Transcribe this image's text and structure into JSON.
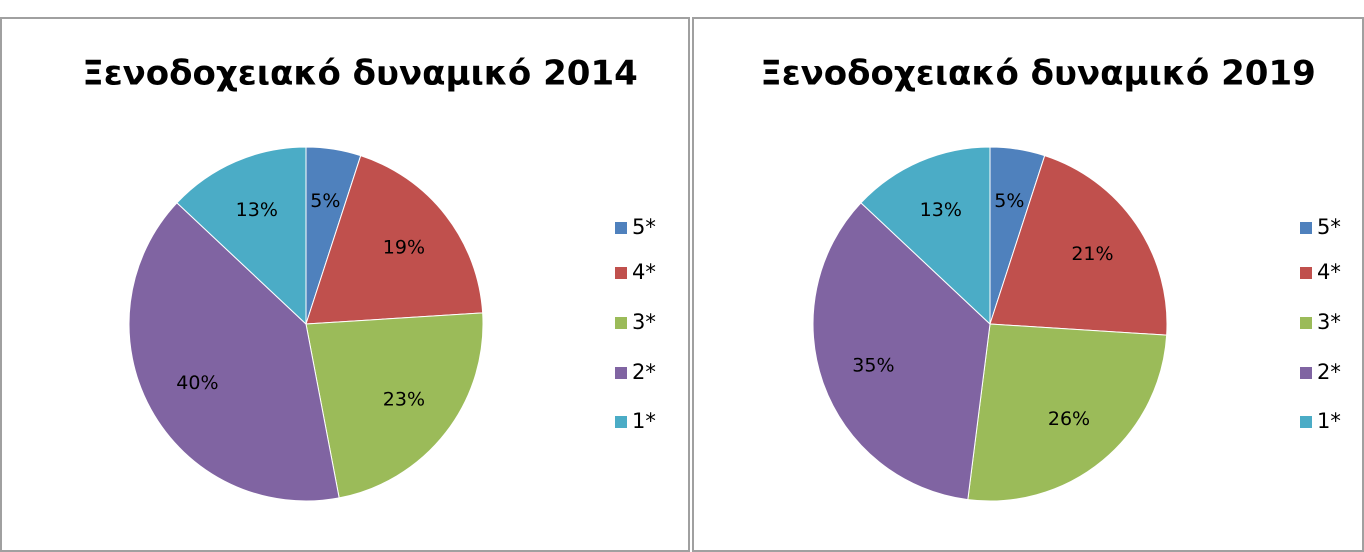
{
  "chart_data": [
    {
      "type": "pie",
      "title": "Ξενοδοχειακό δυναμικό 2014",
      "categories": [
        "5*",
        "4*",
        "3*",
        "2*",
        "1*"
      ],
      "values": [
        5,
        19,
        23,
        40,
        13
      ],
      "value_labels": [
        "5%",
        "19%",
        "23%",
        "40%",
        "13%"
      ],
      "colors": [
        "#4f81bd",
        "#c0504d",
        "#9bbb59",
        "#8064a2",
        "#4bacc6"
      ]
    },
    {
      "type": "pie",
      "title": "Ξενοδοχειακό δυναμικό 2019",
      "categories": [
        "5*",
        "4*",
        "3*",
        "2*",
        "1*"
      ],
      "values": [
        5,
        21,
        26,
        35,
        13
      ],
      "value_labels": [
        "5%",
        "21%",
        "26%",
        "35%",
        "13%"
      ],
      "colors": [
        "#4f81bd",
        "#c0504d",
        "#9bbb59",
        "#8064a2",
        "#4bacc6"
      ]
    }
  ]
}
